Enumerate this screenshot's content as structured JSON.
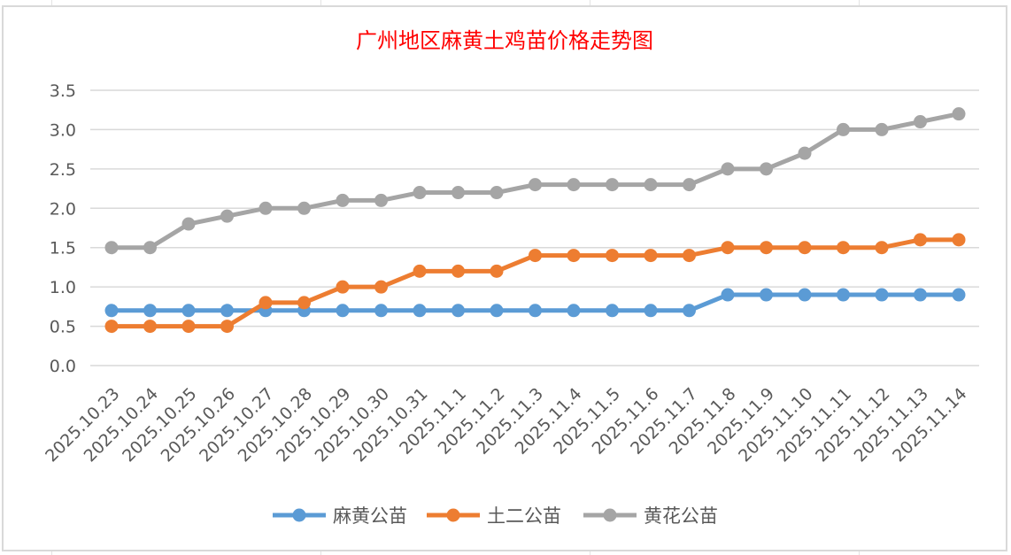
{
  "chart_data": {
    "type": "line",
    "title": "广州地区麻黄土鸡苗价格走势图",
    "title_color": "#ff0000",
    "xlabel": "",
    "ylabel": "",
    "ylim": [
      0,
      3.5
    ],
    "yticks": [
      "0.0",
      "0.5",
      "1.0",
      "1.5",
      "2.0",
      "2.5",
      "3.0",
      "3.5"
    ],
    "grid": true,
    "legend_position": "bottom",
    "categories": [
      "2025.10.23",
      "2025.10.24",
      "2025.10.25",
      "2025.10.26",
      "2025.10.27",
      "2025.10.28",
      "2025.10.29",
      "2025.10.30",
      "2025.10.31",
      "2025.11.1",
      "2025.11.2",
      "2025.11.3",
      "2025.11.4",
      "2025.11.5",
      "2025.11.6",
      "2025.11.7",
      "2025.11.8",
      "2025.11.9",
      "2025.11.10",
      "2025.11.11",
      "2025.11.12",
      "2025.11.13",
      "2025.11.14"
    ],
    "series": [
      {
        "name": "麻黄公苗",
        "color": "#5b9bd5",
        "values": [
          0.7,
          0.7,
          0.7,
          0.7,
          0.7,
          0.7,
          0.7,
          0.7,
          0.7,
          0.7,
          0.7,
          0.7,
          0.7,
          0.7,
          0.7,
          0.7,
          0.9,
          0.9,
          0.9,
          0.9,
          0.9,
          0.9,
          0.9
        ]
      },
      {
        "name": "土二公苗",
        "color": "#ed7d31",
        "values": [
          0.5,
          0.5,
          0.5,
          0.5,
          0.8,
          0.8,
          1.0,
          1.0,
          1.2,
          1.2,
          1.2,
          1.4,
          1.4,
          1.4,
          1.4,
          1.4,
          1.5,
          1.5,
          1.5,
          1.5,
          1.5,
          1.6,
          1.6
        ]
      },
      {
        "name": "黄花公苗",
        "color": "#a5a5a5",
        "values": [
          1.5,
          1.5,
          1.8,
          1.9,
          2.0,
          2.0,
          2.1,
          2.1,
          2.2,
          2.2,
          2.2,
          2.3,
          2.3,
          2.3,
          2.3,
          2.3,
          2.5,
          2.5,
          2.7,
          3.0,
          3.0,
          3.1,
          3.2
        ]
      }
    ]
  }
}
